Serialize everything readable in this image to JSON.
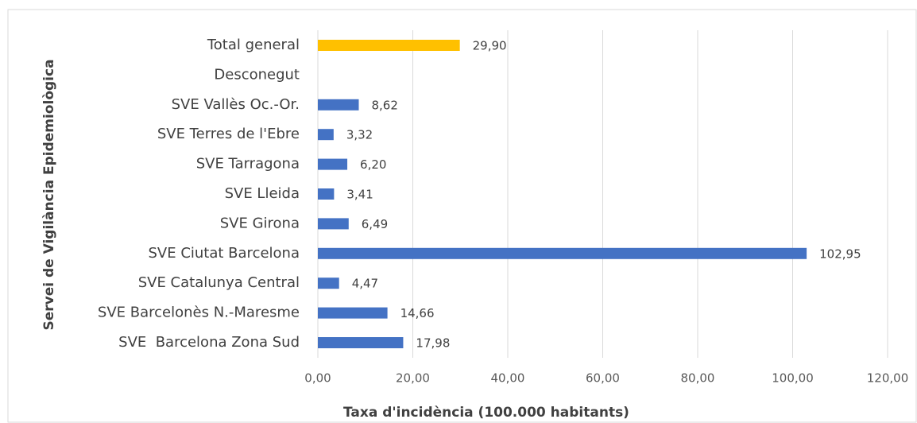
{
  "chart_data": {
    "type": "hbar",
    "x_label": "Taxa d'incidència (100.000 habitants)",
    "y_label": "Servei de Vigilància Epidemiològica",
    "categories": [
      "Total general",
      "Desconegut",
      "SVE Vallès Oc.-Or.",
      "SVE Terres de l'Ebre",
      "SVE Tarragona",
      "SVE Lleida",
      "SVE Girona",
      "SVE Ciutat Barcelona",
      "SVE Catalunya Central",
      "SVE Barcelonès N.-Maresme",
      "SVE  Barcelona Zona Sud"
    ],
    "values": [
      29.9,
      null,
      8.62,
      3.32,
      6.2,
      3.41,
      6.49,
      102.95,
      4.47,
      14.66,
      17.98
    ],
    "value_labels": [
      "29,90",
      null,
      "8,62",
      "3,32",
      "6,20",
      "3,41",
      "6,49",
      "102,95",
      "4,47",
      "14,66",
      "17,98"
    ],
    "colors": [
      "#ffc000",
      "#4472c4",
      "#4472c4",
      "#4472c4",
      "#4472c4",
      "#4472c4",
      "#4472c4",
      "#4472c4",
      "#4472c4",
      "#4472c4",
      "#4472c4"
    ],
    "xlim": [
      0,
      120
    ],
    "xticks": [
      {
        "value": 0,
        "label": "0,00"
      },
      {
        "value": 20,
        "label": "20,00"
      },
      {
        "value": 40,
        "label": "40,00"
      },
      {
        "value": 60,
        "label": "60,00"
      },
      {
        "value": 80,
        "label": "80,00"
      },
      {
        "value": 100,
        "label": "100,00"
      },
      {
        "value": 120,
        "label": "120,00"
      }
    ],
    "grid": true
  }
}
